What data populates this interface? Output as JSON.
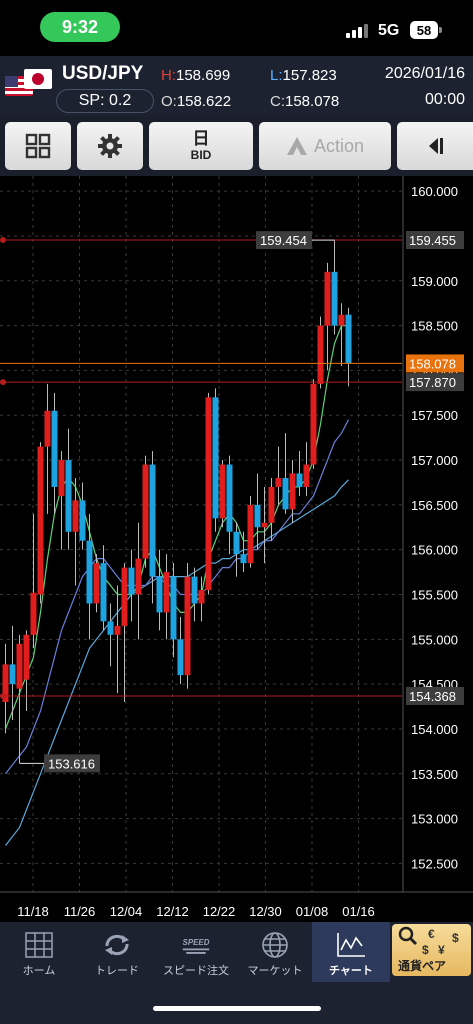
{
  "status": {
    "time": "9:32",
    "network": "5G",
    "battery": "58"
  },
  "header": {
    "pair": "USD/JPY",
    "spread": "SP: 0.2",
    "high_label": "H:",
    "high": "158.699",
    "low_label": "L:",
    "low": "157.823",
    "open_label": "O:",
    "open": "158.622",
    "close_label": "C:",
    "close": "158.078",
    "date": "2026/01/16",
    "time": "00:00",
    "flags": [
      "us-flag-icon",
      "jp-flag-icon"
    ]
  },
  "toolbar": {
    "layout_icon": "grid-icon",
    "settings_icon": "gear-icon",
    "timeframe": "日",
    "price_type": "BID",
    "action_label": "Action",
    "collapse_icon": "collapse-icon"
  },
  "chart_data": {
    "type": "candlestick",
    "symbol": "USD/JPY",
    "timeframe": "daily",
    "yticks": [
      "160.000",
      "159.500",
      "159.000",
      "158.500",
      "158.000",
      "157.500",
      "157.000",
      "156.500",
      "156.000",
      "155.500",
      "155.000",
      "154.500",
      "154.000",
      "153.500",
      "153.000",
      "152.500"
    ],
    "ylim": [
      152.25,
      160.25
    ],
    "xticks": [
      "11/18",
      "11/26",
      "12/04",
      "12/12",
      "12/22",
      "12/30",
      "01/08",
      "01/16"
    ],
    "horizontal_lines": [
      {
        "label": "159.455",
        "value": 159.455,
        "color": "#b81c1c"
      },
      {
        "label": "157.870",
        "value": 157.87,
        "color": "#b81c1c"
      },
      {
        "label": "154.368",
        "value": 154.368,
        "color": "#b81c1c"
      },
      {
        "label": "158.078",
        "value": 158.078,
        "color": "#e8730c",
        "current": true
      }
    ],
    "annotations": [
      {
        "label": "159.454",
        "value": 159.454,
        "note": "high"
      },
      {
        "label": "153.616",
        "value": 153.616,
        "note": "low"
      }
    ],
    "colors": {
      "up": "#e01e1e",
      "down": "#1ca3e0",
      "ma_short": "#5fcf7a",
      "ma_mid": "#6a7fd8",
      "ma_long": "#5aa8d8"
    },
    "candles": [
      {
        "o": 154.3,
        "h": 154.95,
        "l": 153.95,
        "c": 154.72
      },
      {
        "o": 154.72,
        "h": 155.15,
        "l": 154.1,
        "c": 154.5
      },
      {
        "o": 154.45,
        "h": 155.05,
        "l": 153.616,
        "c": 154.95
      },
      {
        "o": 154.55,
        "h": 155.1,
        "l": 154.2,
        "c": 155.05
      },
      {
        "o": 155.05,
        "h": 156.4,
        "l": 154.9,
        "c": 155.52
      },
      {
        "o": 155.5,
        "h": 157.2,
        "l": 155.4,
        "c": 157.15
      },
      {
        "o": 157.15,
        "h": 157.85,
        "l": 156.4,
        "c": 157.55
      },
      {
        "o": 157.55,
        "h": 157.75,
        "l": 156.4,
        "c": 156.7
      },
      {
        "o": 156.6,
        "h": 157.1,
        "l": 156.0,
        "c": 157.0
      },
      {
        "o": 157.0,
        "h": 157.35,
        "l": 156.0,
        "c": 156.2
      },
      {
        "o": 156.2,
        "h": 156.8,
        "l": 155.6,
        "c": 156.55
      },
      {
        "o": 156.55,
        "h": 156.75,
        "l": 156.0,
        "c": 156.1
      },
      {
        "o": 156.1,
        "h": 156.4,
        "l": 155.0,
        "c": 155.4
      },
      {
        "o": 155.4,
        "h": 155.95,
        "l": 155.3,
        "c": 155.85
      },
      {
        "o": 155.85,
        "h": 156.05,
        "l": 155.1,
        "c": 155.2
      },
      {
        "o": 155.2,
        "h": 155.4,
        "l": 154.7,
        "c": 155.05
      },
      {
        "o": 155.05,
        "h": 155.6,
        "l": 154.4,
        "c": 155.15
      },
      {
        "o": 155.15,
        "h": 155.85,
        "l": 154.3,
        "c": 155.8
      },
      {
        "o": 155.8,
        "h": 156.0,
        "l": 155.2,
        "c": 155.5
      },
      {
        "o": 155.5,
        "h": 156.3,
        "l": 155.0,
        "c": 155.9
      },
      {
        "o": 155.9,
        "h": 157.05,
        "l": 155.8,
        "c": 156.95
      },
      {
        "o": 156.95,
        "h": 157.1,
        "l": 155.4,
        "c": 155.7
      },
      {
        "o": 155.7,
        "h": 156.0,
        "l": 155.1,
        "c": 155.3
      },
      {
        "o": 155.3,
        "h": 155.95,
        "l": 155.0,
        "c": 155.75
      },
      {
        "o": 155.7,
        "h": 155.85,
        "l": 154.8,
        "c": 155.0
      },
      {
        "o": 155.0,
        "h": 155.25,
        "l": 154.5,
        "c": 154.6
      },
      {
        "o": 154.6,
        "h": 155.85,
        "l": 154.45,
        "c": 155.7
      },
      {
        "o": 155.7,
        "h": 155.8,
        "l": 155.2,
        "c": 155.4
      },
      {
        "o": 155.4,
        "h": 155.7,
        "l": 155.2,
        "c": 155.55
      },
      {
        "o": 155.55,
        "h": 157.75,
        "l": 155.5,
        "c": 157.7
      },
      {
        "o": 157.7,
        "h": 157.8,
        "l": 156.2,
        "c": 156.35
      },
      {
        "o": 156.35,
        "h": 157.0,
        "l": 156.25,
        "c": 156.95
      },
      {
        "o": 156.95,
        "h": 157.05,
        "l": 155.95,
        "c": 156.2
      },
      {
        "o": 156.2,
        "h": 156.3,
        "l": 155.7,
        "c": 155.95
      },
      {
        "o": 155.95,
        "h": 156.2,
        "l": 155.75,
        "c": 155.85
      },
      {
        "o": 155.85,
        "h": 156.6,
        "l": 155.8,
        "c": 156.5
      },
      {
        "o": 156.5,
        "h": 156.85,
        "l": 156.0,
        "c": 156.25
      },
      {
        "o": 156.25,
        "h": 156.7,
        "l": 155.85,
        "c": 156.3
      },
      {
        "o": 156.3,
        "h": 156.8,
        "l": 156.1,
        "c": 156.7
      },
      {
        "o": 156.7,
        "h": 157.15,
        "l": 156.5,
        "c": 156.8
      },
      {
        "o": 156.8,
        "h": 157.3,
        "l": 156.4,
        "c": 156.45
      },
      {
        "o": 156.45,
        "h": 157.0,
        "l": 156.3,
        "c": 156.85
      },
      {
        "o": 156.85,
        "h": 157.1,
        "l": 156.6,
        "c": 156.7
      },
      {
        "o": 156.7,
        "h": 157.2,
        "l": 156.6,
        "c": 156.95
      },
      {
        "o": 156.95,
        "h": 157.9,
        "l": 156.9,
        "c": 157.85
      },
      {
        "o": 157.85,
        "h": 158.6,
        "l": 157.8,
        "c": 158.5
      },
      {
        "o": 158.5,
        "h": 159.2,
        "l": 158.0,
        "c": 159.1
      },
      {
        "o": 159.1,
        "h": 159.454,
        "l": 158.4,
        "c": 158.5
      },
      {
        "o": 158.5,
        "h": 158.75,
        "l": 158.05,
        "c": 158.62
      },
      {
        "o": 158.622,
        "h": 158.699,
        "l": 157.823,
        "c": 158.078
      }
    ],
    "ma_short": [
      154.0,
      154.2,
      154.4,
      154.6,
      154.8,
      155.3,
      155.9,
      156.4,
      156.7,
      156.8,
      156.7,
      156.5,
      156.2,
      155.9,
      155.7,
      155.6,
      155.5,
      155.5,
      155.5,
      155.6,
      155.9,
      156.0,
      155.8,
      155.6,
      155.4,
      155.3,
      155.3,
      155.4,
      155.5,
      155.9,
      156.1,
      156.3,
      156.4,
      156.3,
      156.1,
      156.1,
      156.2,
      156.2,
      156.3,
      156.5,
      156.6,
      156.7,
      156.7,
      156.8,
      157.0,
      157.4,
      157.9,
      158.3,
      158.5,
      158.5
    ],
    "ma_mid": [
      153.5,
      153.6,
      153.7,
      153.8,
      154.0,
      154.2,
      154.5,
      154.8,
      155.1,
      155.3,
      155.5,
      155.7,
      155.8,
      155.9,
      155.9,
      155.8,
      155.7,
      155.6,
      155.6,
      155.6,
      155.6,
      155.7,
      155.7,
      155.6,
      155.6,
      155.5,
      155.5,
      155.5,
      155.5,
      155.6,
      155.7,
      155.8,
      155.8,
      155.9,
      155.9,
      156.0,
      156.0,
      156.1,
      156.1,
      156.2,
      156.3,
      156.4,
      156.4,
      156.5,
      156.6,
      156.8,
      157.0,
      157.2,
      157.3,
      157.45
    ],
    "ma_long": [
      152.7,
      152.8,
      152.9,
      153.1,
      153.3,
      153.5,
      153.7,
      153.9,
      154.1,
      154.3,
      154.5,
      154.7,
      154.9,
      155.0,
      155.1,
      155.2,
      155.3,
      155.4,
      155.5,
      155.55,
      155.6,
      155.65,
      155.7,
      155.7,
      155.7,
      155.7,
      155.7,
      155.75,
      155.8,
      155.85,
      155.85,
      155.9,
      155.9,
      155.95,
      156.0,
      156.0,
      156.05,
      156.1,
      156.15,
      156.2,
      156.25,
      156.3,
      156.35,
      156.4,
      156.45,
      156.5,
      156.55,
      156.6,
      156.7,
      156.78
    ]
  },
  "bottom_nav": {
    "items": [
      {
        "label": "ホーム",
        "icon": "home-grid-icon"
      },
      {
        "label": "トレード",
        "icon": "trade-arrows-icon"
      },
      {
        "label": "スピード注文",
        "icon": "speed-order-icon",
        "badge": "SPEED"
      },
      {
        "label": "マーケット",
        "icon": "globe-icon"
      },
      {
        "label": "チャート",
        "icon": "chart-icon",
        "active": true
      }
    ],
    "currency_label": "通貨ペア",
    "currency_symbols": [
      "€",
      "$",
      "¥",
      "$"
    ]
  }
}
